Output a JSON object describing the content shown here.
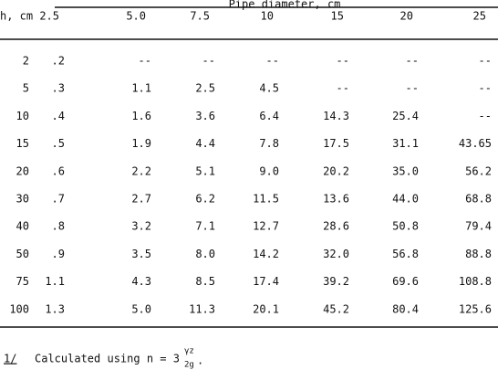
{
  "table": {
    "group_header": "Pipe diameter, cm",
    "header": [
      "h, cm",
      "2.5",
      "5.0",
      "7.5",
      "10",
      "15",
      "20",
      "25"
    ],
    "rows": [
      [
        "2",
        ".2",
        "--",
        "--",
        "--",
        "--",
        "--",
        "--"
      ],
      [
        "5",
        ".3",
        "1.1",
        "2.5",
        "4.5",
        "--",
        "--",
        "--"
      ],
      [
        "10",
        ".4",
        "1.6",
        "3.6",
        "6.4",
        "14.3",
        "25.4",
        "--"
      ],
      [
        "15",
        ".5",
        "1.9",
        "4.4",
        "7.8",
        "17.5",
        "31.1",
        "43.65"
      ],
      [
        "20",
        ".6",
        "2.2",
        "5.1",
        "9.0",
        "20.2",
        "35.0",
        "56.2"
      ],
      [
        "30",
        ".7",
        "2.7",
        "6.2",
        "11.5",
        "13.6",
        "44.0",
        "68.8"
      ],
      [
        "40",
        ".8",
        "3.2",
        "7.1",
        "12.7",
        "28.6",
        "50.8",
        "79.4"
      ],
      [
        "50",
        ".9",
        "3.5",
        "8.0",
        "14.2",
        "32.0",
        "56.8",
        "88.8"
      ],
      [
        "75",
        "1.1",
        "4.3",
        "8.5",
        "17.4",
        "39.2",
        "69.6",
        "108.8"
      ],
      [
        "100",
        "1.3",
        "5.0",
        "11.3",
        "20.1",
        "45.2",
        "80.4",
        "125.6"
      ]
    ]
  },
  "footnote": {
    "marker": "1/",
    "text": "Calculated using n = 3",
    "numerator": "γz",
    "denominator": "2g",
    "end": "."
  }
}
